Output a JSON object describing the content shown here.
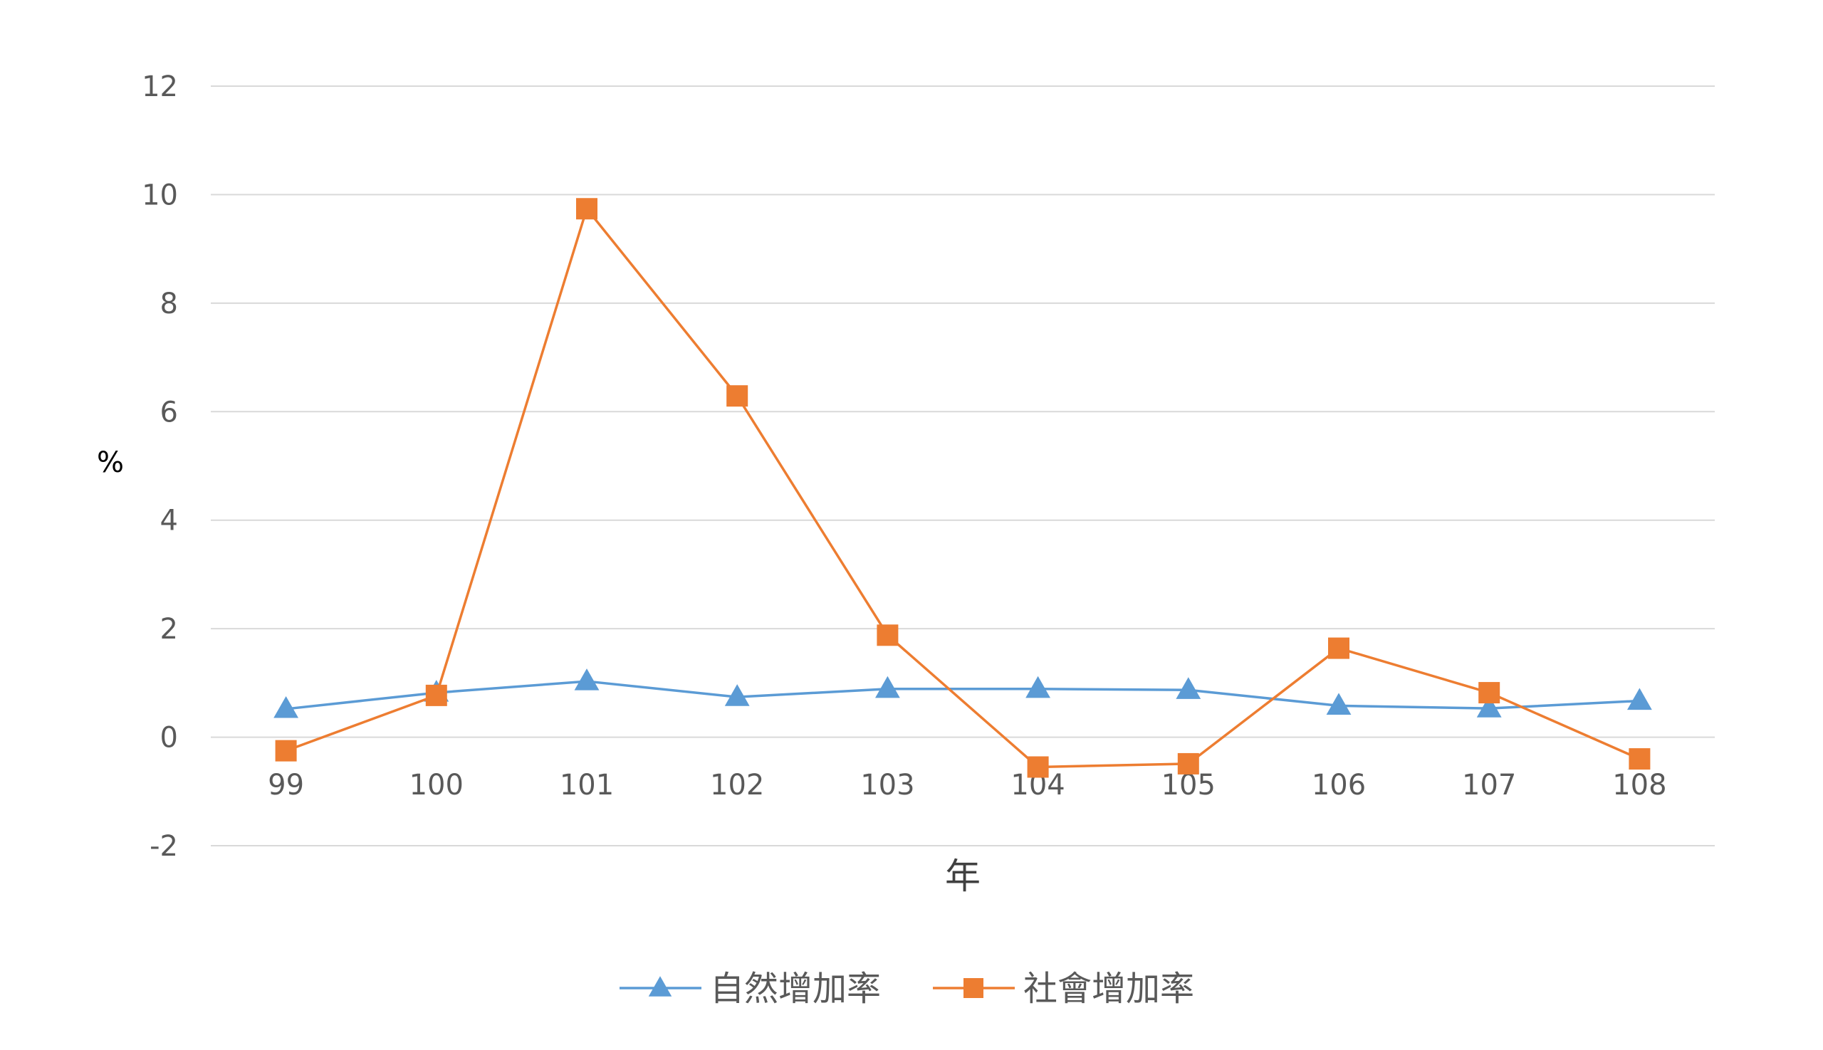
{
  "chart_data": {
    "type": "line",
    "categories": [
      "99",
      "100",
      "101",
      "102",
      "103",
      "104",
      "105",
      "106",
      "107",
      "108"
    ],
    "xlabel": "年",
    "ylabel": "%",
    "ylim": [
      -2,
      12
    ],
    "yticks": [
      -2,
      0,
      2,
      4,
      6,
      8,
      10,
      12
    ],
    "grid": true,
    "legend_position": "bottom",
    "series": [
      {
        "name": "自然增加率",
        "marker": "triangle",
        "color": "#5B9BD5",
        "values": [
          0.52,
          0.82,
          1.03,
          0.74,
          0.89,
          0.89,
          0.87,
          0.58,
          0.53,
          0.67
        ]
      },
      {
        "name": "社會增加率",
        "marker": "square",
        "color": "#ED7D31",
        "values": [
          -0.25,
          0.77,
          9.74,
          6.29,
          1.88,
          -0.55,
          -0.49,
          1.64,
          0.82,
          -0.4
        ]
      }
    ]
  }
}
